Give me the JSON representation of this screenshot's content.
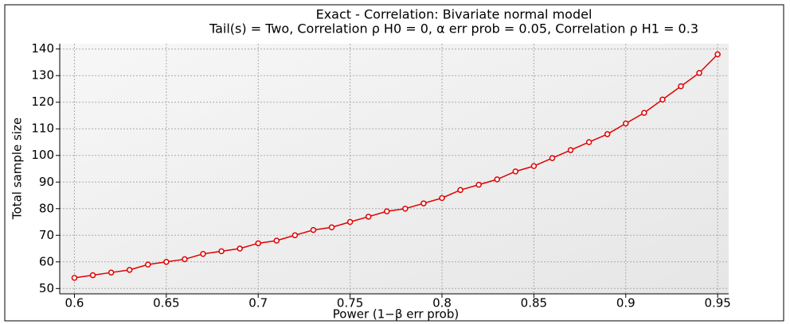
{
  "chart_data": {
    "type": "line",
    "title": "Exact - Correlation: Bivariate normal model",
    "subtitle": "Tail(s) = Two, Correlation ρ H0 = 0, α err prob = 0.05, Correlation ρ H1 = 0.3",
    "x_label": "Power (1−β err prob)",
    "y_label": "Total sample size",
    "x": [
      0.6,
      0.61,
      0.62,
      0.63,
      0.64,
      0.65,
      0.66,
      0.67,
      0.68,
      0.69,
      0.7,
      0.71,
      0.72,
      0.73,
      0.74,
      0.75,
      0.76,
      0.77,
      0.78,
      0.79,
      0.8,
      0.81,
      0.82,
      0.83,
      0.84,
      0.85,
      0.86,
      0.87,
      0.88,
      0.89,
      0.9,
      0.91,
      0.92,
      0.93,
      0.94,
      0.95
    ],
    "series": [
      {
        "color": "#e00000",
        "values": [
          54,
          55,
          56,
          57,
          59,
          60,
          61,
          63,
          64,
          65,
          67,
          68,
          70,
          72,
          73,
          75,
          77,
          79,
          80,
          82,
          84,
          87,
          89,
          91,
          94,
          96,
          99,
          102,
          105,
          108,
          112,
          116,
          121,
          126,
          131,
          138
        ]
      }
    ],
    "xlim": [
      0.592,
      0.956
    ],
    "ylim": [
      48,
      142
    ],
    "xticks": [
      0.6,
      0.65,
      0.7,
      0.75,
      0.8,
      0.85,
      0.9,
      0.95
    ],
    "yticks": [
      50,
      60,
      70,
      80,
      90,
      100,
      110,
      120,
      130,
      140
    ],
    "grid": true
  }
}
